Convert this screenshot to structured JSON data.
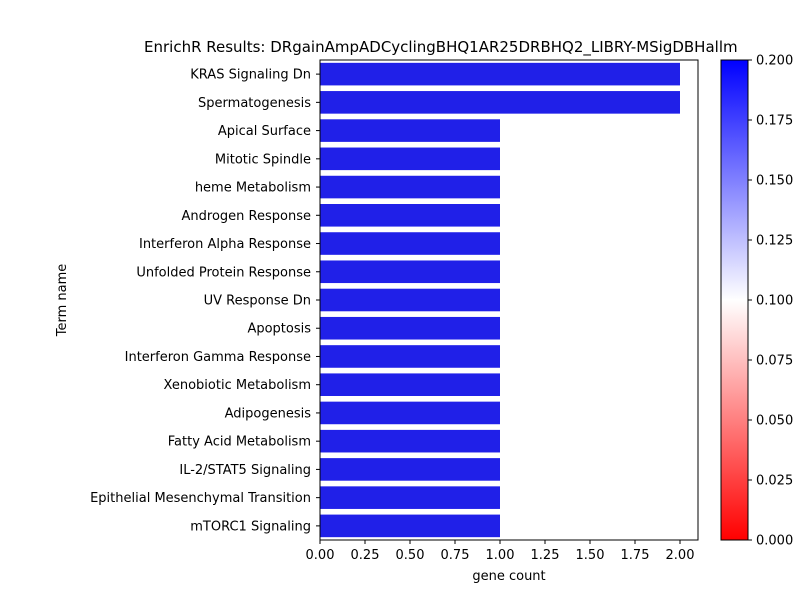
{
  "chart_data": {
    "type": "bar",
    "orientation": "horizontal",
    "title": "EnrichR Results: DRgainAmpADCyclingBHQ1AR25DRBHQ2_LIBRY-MSigDBHallm",
    "xlabel": "gene count",
    "ylabel": "Term name",
    "xlim": [
      0,
      2.1
    ],
    "xticks": [
      "0.00",
      "0.25",
      "0.50",
      "0.75",
      "1.00",
      "1.25",
      "1.50",
      "1.75",
      "2.00"
    ],
    "categories": [
      "KRAS Signaling Dn",
      "Spermatogenesis",
      "Apical Surface",
      "Mitotic Spindle",
      "heme Metabolism",
      "Androgen Response",
      "Interferon Alpha Response",
      "Unfolded Protein Response",
      "UV Response Dn",
      "Apoptosis",
      "Interferon Gamma Response",
      "Xenobiotic Metabolism",
      "Adipogenesis",
      "Fatty Acid Metabolism",
      "IL-2/STAT5 Signaling",
      "Epithelial Mesenchymal Transition",
      "mTORC1 Signaling"
    ],
    "values": [
      2,
      2,
      1,
      1,
      1,
      1,
      1,
      1,
      1,
      1,
      1,
      1,
      1,
      1,
      1,
      1,
      1
    ],
    "bar_color": "#2020e8",
    "grid": false,
    "colorbar": {
      "range": [
        0.0,
        0.2
      ],
      "ticks": [
        "0.000",
        "0.025",
        "0.050",
        "0.075",
        "0.100",
        "0.125",
        "0.150",
        "0.175",
        "0.200"
      ],
      "colors": [
        "#ff0000",
        "#ffffff",
        "#0000ff"
      ],
      "placement": "right"
    }
  }
}
